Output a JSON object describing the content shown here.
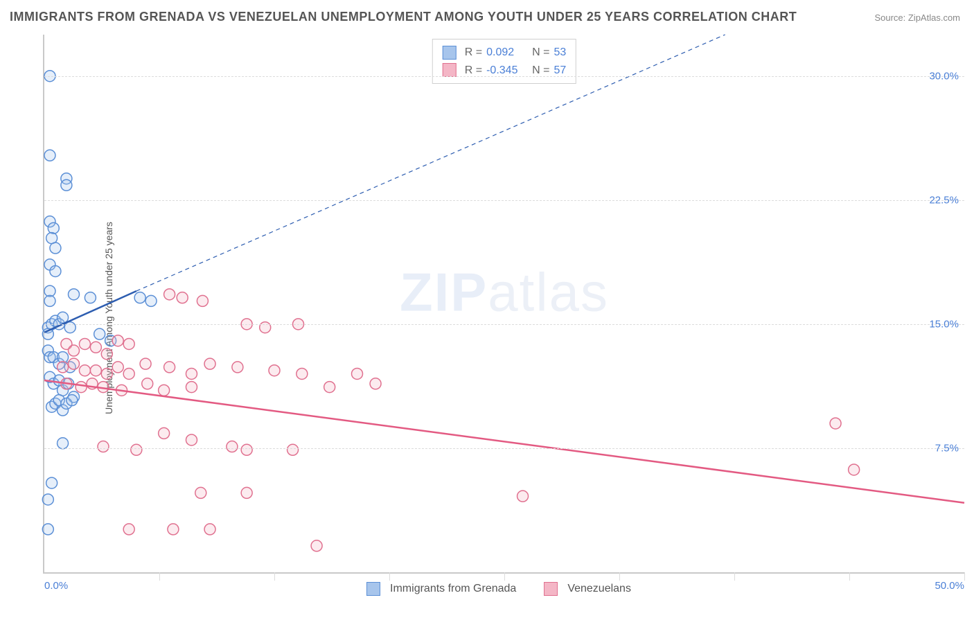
{
  "title": "IMMIGRANTS FROM GRENADA VS VENEZUELAN UNEMPLOYMENT AMONG YOUTH UNDER 25 YEARS CORRELATION CHART",
  "source": "Source: ZipAtlas.com",
  "y_axis_title": "Unemployment Among Youth under 25 years",
  "watermark_a": "ZIP",
  "watermark_b": "atlas",
  "chart": {
    "type": "scatter",
    "xlim": [
      0,
      50
    ],
    "ylim": [
      0,
      32.5
    ],
    "x_ticks": [
      {
        "v": 0.0,
        "label": "0.0%"
      },
      {
        "v": 50.0,
        "label": "50.0%"
      }
    ],
    "x_grid": [
      0,
      6.25,
      12.5,
      18.75,
      25,
      31.25,
      37.5,
      43.75,
      50
    ],
    "y_ticks": [
      {
        "v": 7.5,
        "label": "7.5%"
      },
      {
        "v": 15.0,
        "label": "15.0%"
      },
      {
        "v": 22.5,
        "label": "22.5%"
      },
      {
        "v": 30.0,
        "label": "30.0%"
      }
    ],
    "grid_color": "#dcdcdc",
    "axis_color": "#c9c9c9",
    "background_color": "#ffffff",
    "marker_radius": 8,
    "marker_stroke_width": 1.5,
    "marker_fill_opacity": 0.28,
    "series": [
      {
        "name": "Immigrants from Grenada",
        "color_stroke": "#5b8fd6",
        "color_fill": "#a7c5ec",
        "swatch_fill": "#a7c5ec",
        "swatch_border": "#5b8fd6",
        "r_label": "R =",
        "r_value": "0.092",
        "n_label": "N =",
        "n_value": "53",
        "trend": {
          "x1": 0.0,
          "y1": 14.5,
          "x2": 5.0,
          "y2": 17.0,
          "color": "#2d5db0",
          "width": 2.5
        },
        "trend_ext": {
          "x1": 5.0,
          "y1": 17.0,
          "x2": 37.0,
          "y2": 32.5,
          "color": "#2d5db0",
          "dash": "6 5",
          "width": 1.2
        },
        "points": [
          [
            0.3,
            30.0
          ],
          [
            0.3,
            25.2
          ],
          [
            1.2,
            23.8
          ],
          [
            1.2,
            23.4
          ],
          [
            0.3,
            21.2
          ],
          [
            0.5,
            20.8
          ],
          [
            0.4,
            20.2
          ],
          [
            0.6,
            19.6
          ],
          [
            0.3,
            18.6
          ],
          [
            0.6,
            18.2
          ],
          [
            0.3,
            17.0
          ],
          [
            0.3,
            16.4
          ],
          [
            1.6,
            16.8
          ],
          [
            2.5,
            16.6
          ],
          [
            0.2,
            14.8
          ],
          [
            0.4,
            15.0
          ],
          [
            0.6,
            15.2
          ],
          [
            0.8,
            15.0
          ],
          [
            1.0,
            15.4
          ],
          [
            1.4,
            14.8
          ],
          [
            0.2,
            14.4
          ],
          [
            3.0,
            14.4
          ],
          [
            3.6,
            14.0
          ],
          [
            5.2,
            16.6
          ],
          [
            5.8,
            16.4
          ],
          [
            0.2,
            13.4
          ],
          [
            0.3,
            13.0
          ],
          [
            0.5,
            13.0
          ],
          [
            0.8,
            12.6
          ],
          [
            1.0,
            13.0
          ],
          [
            1.4,
            12.4
          ],
          [
            0.3,
            11.8
          ],
          [
            0.5,
            11.4
          ],
          [
            0.8,
            11.6
          ],
          [
            1.0,
            11.0
          ],
          [
            1.3,
            11.4
          ],
          [
            1.6,
            10.6
          ],
          [
            0.4,
            10.0
          ],
          [
            0.6,
            10.2
          ],
          [
            0.8,
            10.4
          ],
          [
            1.0,
            9.8
          ],
          [
            1.2,
            10.2
          ],
          [
            1.5,
            10.4
          ],
          [
            1.0,
            7.8
          ],
          [
            0.4,
            5.4
          ],
          [
            0.2,
            4.4
          ],
          [
            0.2,
            2.6
          ]
        ]
      },
      {
        "name": "Venezuelans",
        "color_stroke": "#e0708f",
        "color_fill": "#f4b6c6",
        "swatch_fill": "#f4b6c6",
        "swatch_border": "#e0708f",
        "r_label": "R =",
        "r_value": "-0.345",
        "n_label": "N =",
        "n_value": "57",
        "trend": {
          "x1": 0.0,
          "y1": 11.6,
          "x2": 50.0,
          "y2": 4.2,
          "color": "#e35a82",
          "width": 2.5
        },
        "points": [
          [
            6.8,
            16.8
          ],
          [
            7.5,
            16.6
          ],
          [
            8.6,
            16.4
          ],
          [
            1.2,
            13.8
          ],
          [
            1.6,
            13.4
          ],
          [
            2.2,
            13.8
          ],
          [
            2.8,
            13.6
          ],
          [
            3.4,
            13.2
          ],
          [
            4.0,
            14.0
          ],
          [
            4.6,
            13.8
          ],
          [
            11.0,
            15.0
          ],
          [
            12.0,
            14.8
          ],
          [
            13.8,
            15.0
          ],
          [
            1.0,
            12.4
          ],
          [
            1.6,
            12.6
          ],
          [
            2.2,
            12.2
          ],
          [
            2.8,
            12.2
          ],
          [
            3.4,
            12.0
          ],
          [
            4.0,
            12.4
          ],
          [
            4.6,
            12.0
          ],
          [
            5.5,
            12.6
          ],
          [
            6.8,
            12.4
          ],
          [
            8.0,
            12.0
          ],
          [
            9.0,
            12.6
          ],
          [
            10.5,
            12.4
          ],
          [
            12.5,
            12.2
          ],
          [
            14.0,
            12.0
          ],
          [
            17.0,
            12.0
          ],
          [
            1.2,
            11.4
          ],
          [
            2.0,
            11.2
          ],
          [
            2.6,
            11.4
          ],
          [
            3.2,
            11.2
          ],
          [
            4.2,
            11.0
          ],
          [
            5.6,
            11.4
          ],
          [
            6.5,
            11.0
          ],
          [
            8.0,
            11.2
          ],
          [
            15.5,
            11.2
          ],
          [
            18.0,
            11.4
          ],
          [
            6.5,
            8.4
          ],
          [
            8.0,
            8.0
          ],
          [
            43.0,
            9.0
          ],
          [
            3.2,
            7.6
          ],
          [
            5.0,
            7.4
          ],
          [
            10.2,
            7.6
          ],
          [
            11.0,
            7.4
          ],
          [
            13.5,
            7.4
          ],
          [
            8.5,
            4.8
          ],
          [
            11.0,
            4.8
          ],
          [
            26.0,
            4.6
          ],
          [
            44.0,
            6.2
          ],
          [
            4.6,
            2.6
          ],
          [
            7.0,
            2.6
          ],
          [
            9.0,
            2.6
          ],
          [
            14.8,
            1.6
          ]
        ]
      }
    ]
  },
  "legend": {
    "series_a": "Immigrants from Grenada",
    "series_b": "Venezuelans"
  }
}
